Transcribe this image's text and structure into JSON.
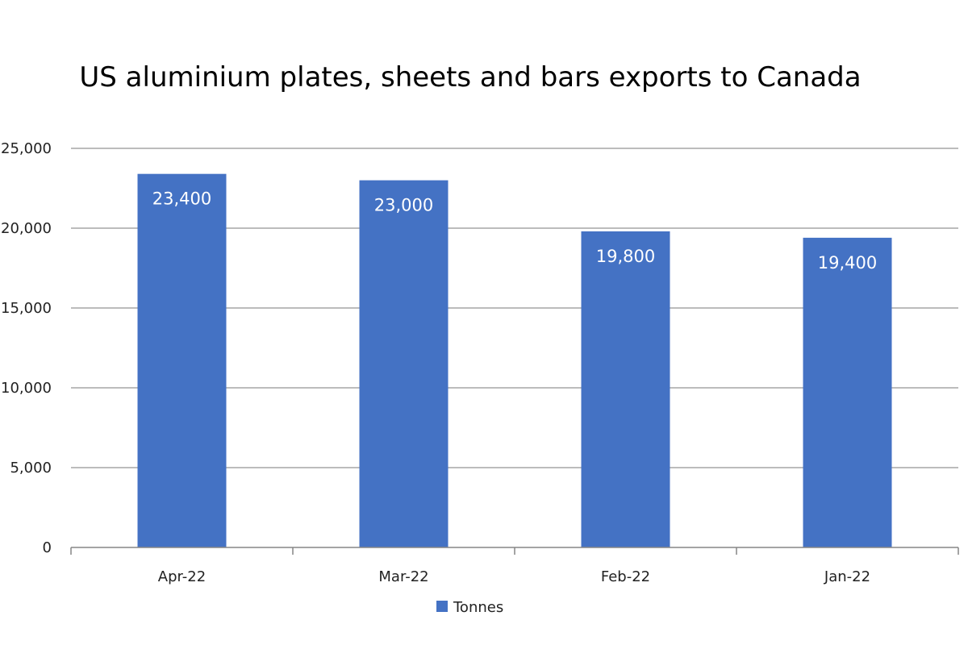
{
  "chart_data": {
    "type": "bar",
    "title": "US aluminium plates, sheets and bars exports to Canada",
    "categories": [
      "Apr-22",
      "Mar-22",
      "Feb-22",
      "Jan-22"
    ],
    "series": [
      {
        "name": "Tonnes",
        "values": [
          23400,
          23000,
          19800,
          19400
        ],
        "color": "#4472c4"
      }
    ],
    "data_labels": [
      "23,400",
      "23,000",
      "19,800",
      "19,400"
    ],
    "ylim": [
      0,
      25000
    ],
    "yticks": [
      0,
      5000,
      10000,
      15000,
      20000,
      25000
    ],
    "ytick_labels": [
      "0",
      "5,000",
      "10,000",
      "15,000",
      "20,000",
      "25,000"
    ],
    "grid": true,
    "legend": "bottom-center"
  },
  "colors": {
    "gridline": "#a6a6a6",
    "axis": "#868686"
  }
}
